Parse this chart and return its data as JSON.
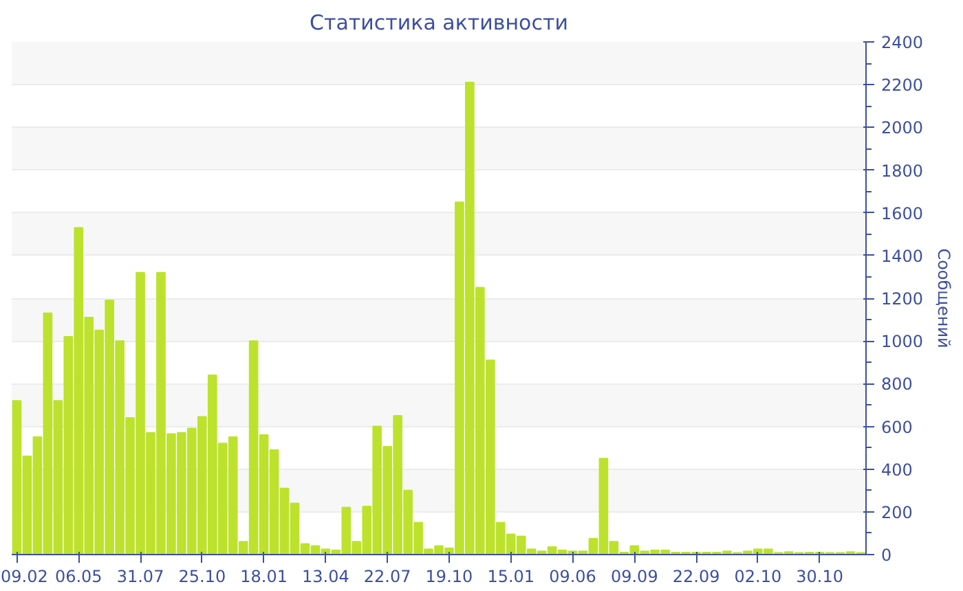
{
  "chart_data": {
    "type": "bar",
    "title": "Статистика активности",
    "ylabel": "Сообщений",
    "categories": [
      "09.02",
      null,
      null,
      null,
      null,
      null,
      "06.05",
      null,
      null,
      null,
      null,
      null,
      "31.07",
      null,
      null,
      null,
      null,
      null,
      "25.10",
      null,
      null,
      null,
      null,
      null,
      "18.01",
      null,
      null,
      null,
      null,
      null,
      "13.04",
      null,
      null,
      null,
      null,
      null,
      "22.07",
      null,
      null,
      null,
      null,
      null,
      "19.10",
      null,
      null,
      null,
      null,
      null,
      "15.01",
      null,
      null,
      null,
      null,
      null,
      "09.06",
      null,
      null,
      null,
      null,
      null,
      "09.09",
      null,
      null,
      null,
      null,
      null,
      "22.09",
      null,
      null,
      null,
      null,
      null,
      "02.10",
      null,
      null,
      null,
      null,
      null,
      "30.10",
      null,
      null,
      null,
      null
    ],
    "values": [
      720,
      460,
      550,
      1130,
      720,
      1020,
      1530,
      1110,
      1050,
      1190,
      1000,
      640,
      1320,
      570,
      1320,
      565,
      570,
      590,
      645,
      840,
      520,
      550,
      60,
      1000,
      560,
      490,
      310,
      240,
      50,
      40,
      25,
      20,
      220,
      60,
      225,
      600,
      505,
      650,
      300,
      150,
      25,
      40,
      30,
      1650,
      2210,
      1250,
      910,
      150,
      95,
      85,
      25,
      15,
      35,
      20,
      15,
      15,
      75,
      450,
      60,
      10,
      40,
      15,
      20,
      20,
      10,
      10,
      10,
      10,
      10,
      15,
      8,
      15,
      25,
      25,
      8,
      12,
      8,
      10,
      10,
      8,
      8,
      12,
      8
    ],
    "color": "#bde22d",
    "ylim": [
      0,
      2400
    ],
    "yticks": [
      0,
      200,
      400,
      600,
      800,
      1000,
      1200,
      1400,
      1600,
      1800,
      2000,
      2200,
      2400
    ],
    "grid": "y"
  }
}
